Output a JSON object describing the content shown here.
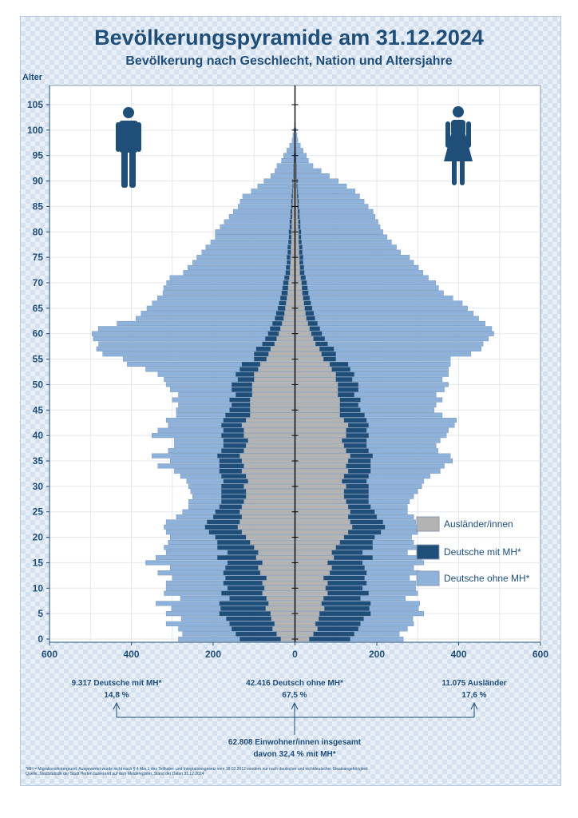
{
  "chart_data": {
    "type": "bar",
    "orientation": "population-pyramid",
    "title": "Bevölkerungspyramide am 31.12.2024",
    "subtitle": "Bevölkerung nach Geschlecht, Nation und Altersjahre",
    "ylabel": "Alter",
    "y_ticks": [
      "0",
      "5",
      "10",
      "15",
      "20",
      "25",
      "30",
      "35",
      "40",
      "45",
      "50",
      "55",
      "60",
      "65",
      "70",
      "75",
      "80",
      "85",
      "90",
      "95",
      "100",
      "105"
    ],
    "x_ticks": [
      "600",
      "400",
      "200",
      "0",
      "200",
      "400",
      "600"
    ],
    "xlim": [
      -600,
      600
    ],
    "ylim": [
      0,
      105
    ],
    "legend_position": "right",
    "grid": true,
    "series": [
      {
        "name": "Ausländer/innen",
        "color": "#b3b3b3"
      },
      {
        "name": "Deutsche mit MH*",
        "color": "#1f4e79"
      },
      {
        "name": "Deutsche ohne MH*",
        "color": "#8fb2db"
      }
    ],
    "ages": [
      0,
      1,
      2,
      3,
      4,
      5,
      6,
      7,
      8,
      9,
      10,
      11,
      12,
      13,
      14,
      15,
      16,
      17,
      18,
      19,
      20,
      21,
      22,
      23,
      24,
      25,
      26,
      27,
      28,
      29,
      30,
      31,
      32,
      33,
      34,
      35,
      36,
      37,
      38,
      39,
      40,
      41,
      42,
      43,
      44,
      45,
      46,
      47,
      48,
      49,
      50,
      51,
      52,
      53,
      54,
      55,
      56,
      57,
      58,
      59,
      60,
      61,
      62,
      63,
      64,
      65,
      66,
      67,
      68,
      69,
      70,
      71,
      72,
      73,
      74,
      75,
      76,
      77,
      78,
      79,
      80,
      81,
      82,
      83,
      84,
      85,
      86,
      87,
      88,
      89,
      90,
      91,
      92,
      93,
      94,
      95,
      96,
      97,
      98,
      99,
      100,
      101
    ],
    "male": {
      "auslaender": [
        35,
        45,
        55,
        50,
        58,
        60,
        72,
        65,
        70,
        80,
        75,
        80,
        70,
        85,
        90,
        80,
        95,
        90,
        100,
        110,
        120,
        130,
        140,
        135,
        130,
        135,
        130,
        125,
        120,
        120,
        125,
        115,
        120,
        130,
        125,
        130,
        135,
        125,
        120,
        115,
        125,
        125,
        130,
        120,
        110,
        110,
        110,
        110,
        105,
        105,
        105,
        100,
        100,
        90,
        85,
        70,
        65,
        60,
        50,
        45,
        40,
        36,
        32,
        28,
        26,
        24,
        22,
        20,
        18,
        17,
        16,
        14,
        12,
        12,
        11,
        11,
        10,
        10,
        9,
        9,
        9,
        8,
        8,
        7,
        7,
        6,
        6,
        5,
        5,
        4,
        4,
        3,
        3,
        3,
        2,
        2,
        2,
        1,
        1,
        1,
        0,
        0
      ],
      "mit_mh": [
        100,
        100,
        100,
        110,
        110,
        125,
        110,
        120,
        90,
        100,
        90,
        95,
        100,
        90,
        80,
        85,
        95,
        75,
        90,
        80,
        75,
        80,
        80,
        80,
        70,
        60,
        55,
        55,
        60,
        60,
        55,
        60,
        60,
        55,
        60,
        55,
        55,
        55,
        55,
        60,
        55,
        50,
        50,
        55,
        60,
        50,
        45,
        50,
        40,
        50,
        50,
        40,
        45,
        45,
        45,
        30,
        35,
        35,
        30,
        28,
        26,
        25,
        23,
        21,
        20,
        18,
        17,
        16,
        15,
        14,
        13,
        12,
        11,
        10,
        9,
        9,
        8,
        8,
        7,
        6,
        6,
        5,
        5,
        4,
        4,
        3,
        3,
        3,
        2,
        2,
        2,
        1,
        1,
        1,
        1,
        1,
        0,
        0,
        0,
        0,
        0,
        0
      ],
      "ohne_mh": [
        150,
        130,
        130,
        155,
        110,
        130,
        120,
        155,
        120,
        140,
        150,
        140,
        130,
        160,
        135,
        200,
        150,
        150,
        130,
        120,
        110,
        105,
        100,
        100,
        90,
        80,
        75,
        80,
        70,
        75,
        80,
        90,
        100,
        110,
        150,
        120,
        160,
        130,
        120,
        120,
        170,
        160,
        130,
        140,
        120,
        130,
        130,
        140,
        140,
        150,
        160,
        180,
        190,
        230,
        280,
        320,
        370,
        390,
        400,
        420,
        430,
        420,
        380,
        340,
        330,
        320,
        310,
        300,
        290,
        290,
        285,
        280,
        250,
        240,
        230,
        220,
        210,
        200,
        190,
        180,
        180,
        170,
        160,
        150,
        140,
        130,
        125,
        120,
        100,
        85,
        70,
        55,
        45,
        40,
        30,
        25,
        18,
        12,
        6,
        4,
        3,
        1
      ]
    },
    "female": {
      "auslaender": [
        35,
        45,
        55,
        50,
        58,
        60,
        72,
        65,
        70,
        80,
        75,
        80,
        70,
        85,
        90,
        80,
        95,
        90,
        100,
        110,
        120,
        130,
        140,
        135,
        130,
        135,
        130,
        125,
        120,
        120,
        125,
        115,
        120,
        130,
        125,
        130,
        135,
        125,
        120,
        115,
        125,
        125,
        130,
        120,
        110,
        110,
        110,
        110,
        105,
        105,
        105,
        100,
        100,
        90,
        85,
        70,
        65,
        60,
        50,
        45,
        40,
        36,
        32,
        28,
        26,
        24,
        22,
        20,
        18,
        17,
        16,
        14,
        12,
        12,
        11,
        11,
        10,
        10,
        9,
        9,
        9,
        8,
        8,
        7,
        7,
        6,
        6,
        5,
        5,
        4,
        4,
        3,
        3,
        3,
        2,
        2,
        2,
        1,
        1,
        1,
        0,
        0
      ],
      "mit_mh": [
        100,
        100,
        100,
        110,
        110,
        125,
        110,
        120,
        90,
        100,
        90,
        95,
        100,
        90,
        80,
        85,
        95,
        75,
        90,
        80,
        75,
        80,
        80,
        80,
        70,
        60,
        55,
        55,
        60,
        60,
        55,
        60,
        60,
        55,
        60,
        55,
        55,
        55,
        55,
        60,
        55,
        50,
        50,
        55,
        60,
        50,
        45,
        50,
        40,
        50,
        50,
        40,
        45,
        45,
        45,
        30,
        35,
        35,
        30,
        28,
        26,
        25,
        23,
        21,
        20,
        18,
        17,
        16,
        15,
        14,
        13,
        12,
        11,
        10,
        9,
        9,
        8,
        8,
        7,
        6,
        6,
        5,
        5,
        4,
        4,
        3,
        3,
        3,
        2,
        2,
        2,
        1,
        1,
        1,
        1,
        1,
        0,
        0,
        0,
        0,
        0,
        0
      ],
      "ohne_mh": [
        130,
        110,
        120,
        130,
        120,
        130,
        120,
        120,
        110,
        120,
        130,
        120,
        110,
        130,
        120,
        150,
        120,
        110,
        110,
        100,
        90,
        90,
        80,
        80,
        90,
        80,
        90,
        100,
        110,
        120,
        130,
        140,
        150,
        170,
        180,
        200,
        190,
        170,
        170,
        180,
        190,
        200,
        210,
        220,
        190,
        180,
        190,
        200,
        200,
        210,
        220,
        220,
        230,
        240,
        250,
        280,
        330,
        360,
        380,
        400,
        420,
        420,
        410,
        400,
        390,
        380,
        370,
        350,
        330,
        320,
        315,
        300,
        290,
        280,
        270,
        260,
        240,
        230,
        220,
        210,
        200,
        195,
        190,
        185,
        180,
        170,
        160,
        150,
        140,
        120,
        100,
        80,
        60,
        40,
        30,
        25,
        18,
        12,
        6,
        4,
        3,
        1
      ]
    }
  },
  "summary": {
    "left_value": "9.317 Deutsche mit MH*",
    "left_pct": "14,8 %",
    "center_value": "42.416 Deutsch ohne MH*",
    "center_pct": "67,5 %",
    "right_value": "11.075 Ausländer",
    "right_pct": "17,6 %",
    "total_line": "62.808 Einwohner/innen insgesamt",
    "total_sub": "davon 32,4 % mit MH*"
  },
  "footnotes": {
    "line1": "*MH = Migrationshintergrund, Ausgewertet wurde nicht nach § 4 Abs.1 des Teilhabe- und Integrationsgesetz vom 18.02.2012 sondern nur nach deutscher und nichtdeutscher Staatsangehörigkeit",
    "line2": "Quelle: Stadtstatistik der Stadt Herten basierend auf dem Melderegister, Stand der Daten 31.12.2024"
  },
  "icons": {
    "male": "man-icon",
    "female": "woman-icon"
  }
}
